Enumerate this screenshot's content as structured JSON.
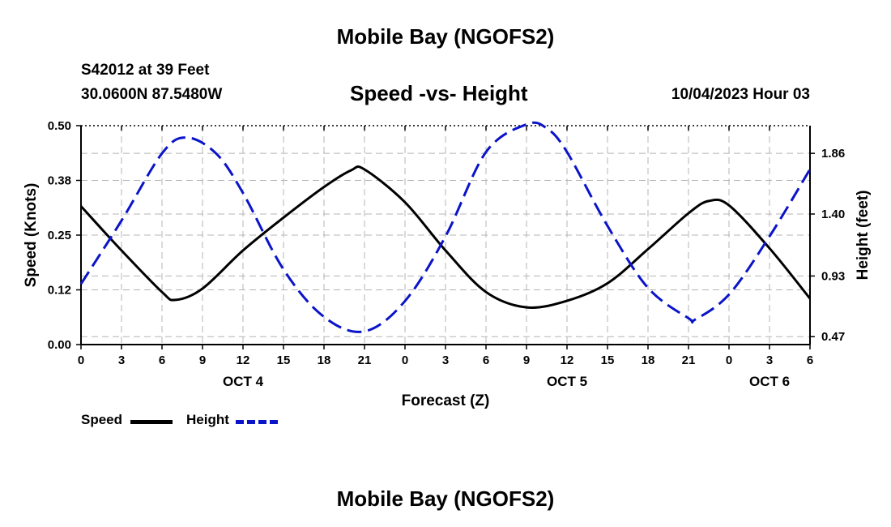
{
  "title": "Mobile Bay (NGOFS2)",
  "footer_title": "Mobile Bay (NGOFS2)",
  "station": "S42012 at 39 Feet",
  "coordinates": "30.0600N  87.5480W",
  "subtitle": "Speed -vs- Height",
  "timestamp": "10/04/2023 Hour 03",
  "colors": {
    "speed": "#000000",
    "height": "#0a14c8",
    "grid": "#b4b4b4"
  },
  "legend": {
    "speed_label": "Speed",
    "height_label": "Height"
  },
  "chart_data": {
    "type": "line",
    "xlabel": "Forecast (Z)",
    "ylabel": "Speed (Knots)",
    "y2label": "Height (feet)",
    "x_unit": "forecast hour (0 = Oct 4 00Z)",
    "xlim": [
      0,
      54
    ],
    "ylim": [
      0,
      0.5
    ],
    "y2lim": [
      0.41,
      2.07
    ],
    "x_ticks": [
      0,
      3,
      6,
      9,
      12,
      15,
      18,
      21,
      24,
      27,
      30,
      33,
      36,
      39,
      42,
      45,
      48,
      51,
      54
    ],
    "x_tick_labels": [
      "0",
      "3",
      "6",
      "9",
      "12",
      "15",
      "18",
      "21",
      "0",
      "3",
      "6",
      "9",
      "12",
      "15",
      "18",
      "21",
      "0",
      "3",
      "6"
    ],
    "y_ticks": [
      0,
      0.125,
      0.25,
      0.375,
      0.5
    ],
    "y_tick_labels": [
      "0.00",
      "0.12",
      "0.25",
      "0.38",
      "0.50"
    ],
    "y2_ticks": [
      0.47,
      0.93,
      1.4,
      1.86
    ],
    "y2_tick_labels": [
      "0.47",
      "0.93",
      "1.40",
      "1.86"
    ],
    "date_labels": [
      {
        "x": 12,
        "label": "OCT 4"
      },
      {
        "x": 36,
        "label": "OCT 5"
      },
      {
        "x": 51,
        "label": "OCT 6"
      }
    ],
    "grid": true,
    "series": [
      {
        "name": "Speed",
        "axis": "left",
        "style": "solid",
        "x": [
          0,
          3,
          6,
          7,
          9,
          12,
          15,
          18,
          20,
          21,
          24,
          27,
          30,
          33,
          36,
          39,
          42,
          45,
          46.5,
          48,
          51,
          54
        ],
        "values": [
          0.316,
          0.215,
          0.12,
          0.102,
          0.128,
          0.215,
          0.29,
          0.36,
          0.398,
          0.4,
          0.325,
          0.215,
          0.12,
          0.085,
          0.1,
          0.14,
          0.218,
          0.3,
          0.328,
          0.318,
          0.22,
          0.105
        ]
      },
      {
        "name": "Height",
        "axis": "right",
        "style": "dashed",
        "x": [
          0,
          3,
          6,
          7.8,
          10,
          12,
          15,
          18,
          21,
          24,
          27,
          30,
          33,
          34.5,
          36,
          39,
          42,
          45,
          45.5,
          48,
          51,
          54
        ],
        "values": [
          0.87,
          1.35,
          1.86,
          1.98,
          1.86,
          1.56,
          0.98,
          0.62,
          0.51,
          0.74,
          1.23,
          1.87,
          2.08,
          2.05,
          1.87,
          1.31,
          0.84,
          0.61,
          0.6,
          0.79,
          1.23,
          1.74
        ]
      }
    ]
  }
}
